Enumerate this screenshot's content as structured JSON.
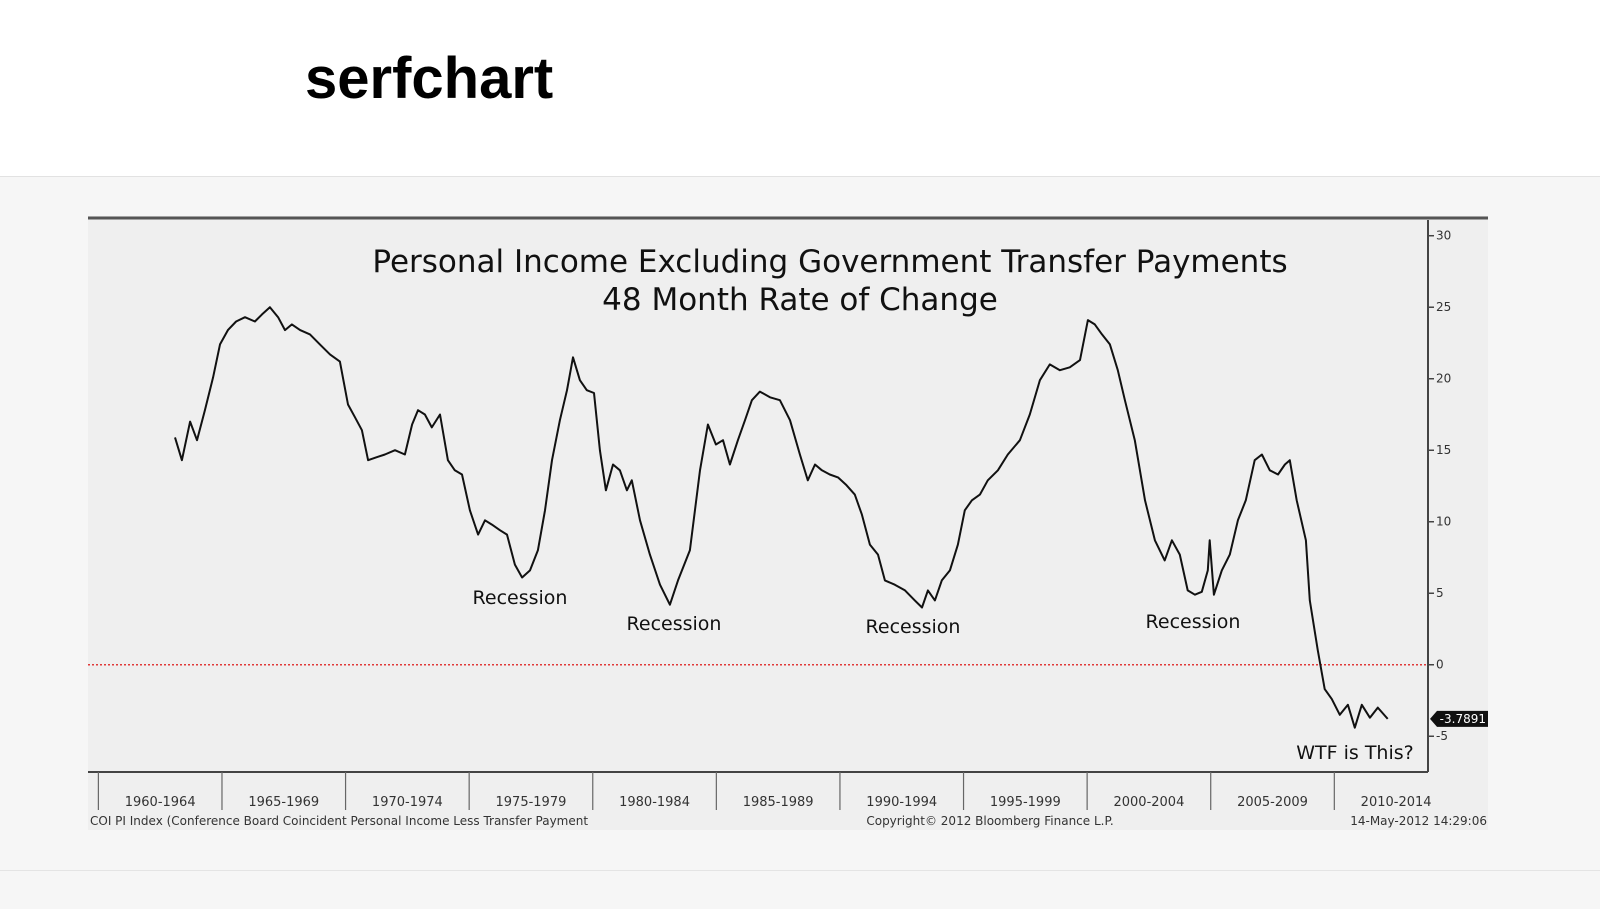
{
  "header": {
    "title": "serfchart"
  },
  "chart_data": {
    "type": "line",
    "title": "Personal Income Excluding Government Transfer Payments",
    "subtitle": "48 Month Rate of Change",
    "annotations": [
      "Recession",
      "Recession",
      "Recession",
      "Recession",
      "WTF is This?"
    ],
    "footer_left": "COI PI Index (Conference Board Coincident Personal Income Less Transfer Payment",
    "footer_center": "Copyright© 2012 Bloomberg Finance L.P.",
    "footer_right": "14-May-2012 14:29:06",
    "reference_line": {
      "value": 0,
      "color": "#e03a3a"
    },
    "xlim": [
      1959.58,
      2013.79
    ],
    "xticks": [
      {
        "value": 1962.5,
        "label": "1960-1964"
      },
      {
        "value": 1967.5,
        "label": "1965-1969"
      },
      {
        "value": 1972.5,
        "label": "1970-1974"
      },
      {
        "value": 1977.5,
        "label": "1975-1979"
      },
      {
        "value": 1982.5,
        "label": "1980-1984"
      },
      {
        "value": 1987.5,
        "label": "1985-1989"
      },
      {
        "value": 1992.5,
        "label": "1990-1994"
      },
      {
        "value": 1997.5,
        "label": "1995-1999"
      },
      {
        "value": 2002.5,
        "label": "2000-2004"
      },
      {
        "value": 2007.5,
        "label": "2005-2009"
      },
      {
        "value": 2012.5,
        "label": "2010-2014"
      }
    ],
    "ylim": [
      -7.5,
      31.1
    ],
    "yticks": [
      -5,
      0,
      5,
      10,
      15,
      20,
      25,
      30
    ],
    "y_axis_side": "right",
    "x": [
      1963.1,
      1963.38,
      1963.71,
      1963.99,
      1964.31,
      1964.64,
      1964.92,
      1965.24,
      1965.57,
      1965.93,
      1966.33,
      1966.62,
      1966.94,
      1967.27,
      1967.55,
      1967.83,
      1968.16,
      1968.56,
      1968.96,
      1969.37,
      1969.77,
      1970.1,
      1970.38,
      1970.66,
      1970.91,
      1971.23,
      1971.59,
      1972.0,
      1972.4,
      1972.69,
      1972.93,
      1973.21,
      1973.49,
      1973.82,
      1974.14,
      1974.42,
      1974.71,
      1975.03,
      1975.36,
      1975.64,
      1975.92,
      1976.25,
      1976.53,
      1976.85,
      1977.14,
      1977.46,
      1977.78,
      1978.07,
      1978.35,
      1978.67,
      1978.96,
      1979.2,
      1979.48,
      1979.76,
      1980.05,
      1980.29,
      1980.53,
      1980.82,
      1981.1,
      1981.38,
      1981.58,
      1981.91,
      1982.31,
      1982.72,
      1983.12,
      1983.45,
      1983.93,
      1984.34,
      1984.66,
      1984.98,
      1985.27,
      1985.55,
      1985.87,
      1986.16,
      1986.44,
      1986.76,
      1987.17,
      1987.57,
      1987.98,
      1988.38,
      1988.7,
      1988.99,
      1989.27,
      1989.59,
      1989.92,
      1990.24,
      1990.6,
      1990.89,
      1991.21,
      1991.54,
      1991.82,
      1992.22,
      1992.63,
      1993.03,
      1993.32,
      1993.56,
      1993.84,
      1994.12,
      1994.45,
      1994.77,
      1995.05,
      1995.34,
      1995.66,
      1995.98,
      1996.39,
      1996.79,
      1997.28,
      1997.68,
      1998.09,
      1998.49,
      1998.9,
      1999.3,
      1999.71,
      2000.03,
      2000.31,
      2000.6,
      2000.92,
      2001.24,
      2001.53,
      2001.93,
      2002.34,
      2002.74,
      2003.14,
      2003.43,
      2003.75,
      2004.07,
      2004.36,
      2004.64,
      2004.88,
      2004.96,
      2005.13,
      2005.45,
      2005.77,
      2006.1,
      2006.42,
      2006.78,
      2007.07,
      2007.39,
      2007.72,
      2008.0,
      2008.2,
      2008.48,
      2008.85,
      2009.01,
      2009.33,
      2009.61,
      2009.9,
      2010.22,
      2010.55,
      2010.83,
      2011.11,
      2011.44,
      2011.76,
      2012.16
    ],
    "series": [
      {
        "name": "COI PI Index",
        "color": "#111111",
        "values": [
          15.9,
          14.3,
          17.0,
          15.7,
          17.8,
          20.1,
          22.4,
          23.4,
          24.0,
          24.3,
          24.0,
          24.5,
          25.0,
          24.3,
          23.4,
          23.8,
          23.4,
          23.1,
          22.4,
          21.7,
          21.2,
          18.2,
          17.3,
          16.4,
          14.3,
          14.5,
          14.7,
          15.0,
          14.7,
          16.8,
          17.8,
          17.5,
          16.6,
          17.5,
          14.3,
          13.6,
          13.3,
          10.8,
          9.1,
          10.1,
          9.8,
          9.4,
          9.1,
          7.0,
          6.1,
          6.6,
          8.0,
          10.8,
          14.3,
          17.1,
          19.2,
          21.5,
          19.9,
          19.2,
          19.0,
          15.0,
          12.2,
          14.0,
          13.6,
          12.2,
          12.9,
          10.1,
          7.7,
          5.6,
          4.2,
          5.9,
          8.0,
          13.6,
          16.8,
          15.4,
          15.7,
          14.0,
          15.7,
          17.1,
          18.5,
          19.1,
          18.7,
          18.5,
          17.1,
          14.7,
          12.9,
          14.0,
          13.6,
          13.3,
          13.1,
          12.6,
          11.9,
          10.5,
          8.4,
          7.7,
          5.9,
          5.6,
          5.2,
          4.5,
          4.0,
          5.2,
          4.5,
          5.9,
          6.6,
          8.4,
          10.8,
          11.5,
          11.9,
          12.9,
          13.6,
          14.7,
          15.7,
          17.5,
          19.9,
          21.0,
          20.6,
          20.8,
          21.3,
          24.1,
          23.8,
          23.1,
          22.4,
          20.6,
          18.5,
          15.7,
          11.5,
          8.7,
          7.3,
          8.7,
          7.7,
          5.2,
          4.9,
          5.1,
          6.6,
          8.7,
          4.9,
          6.6,
          7.7,
          10.1,
          11.5,
          14.3,
          14.7,
          13.6,
          13.3,
          14.0,
          14.3,
          11.5,
          8.7,
          4.5,
          1.0,
          -1.7,
          -2.4,
          -3.5,
          -2.8,
          -4.4,
          -2.8,
          -3.7,
          -3.0,
          -3.7891
        ]
      }
    ]
  }
}
